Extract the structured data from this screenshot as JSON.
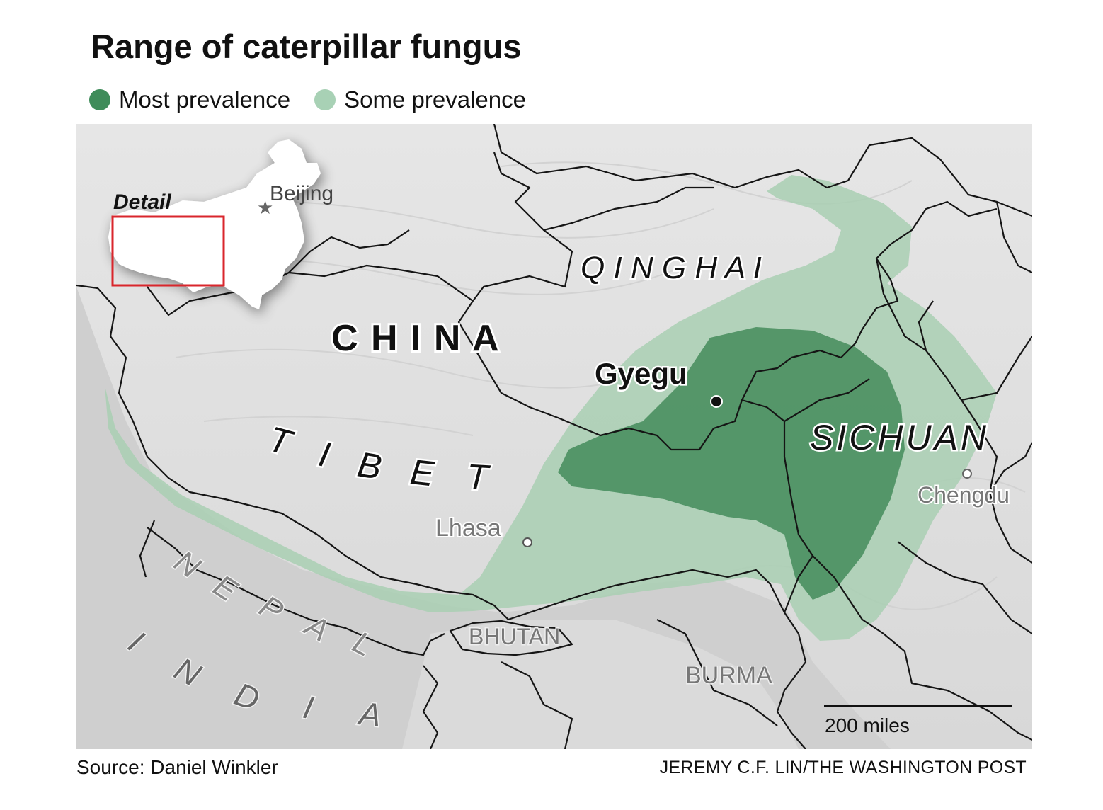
{
  "title": "Range of caterpillar fungus",
  "legend": [
    {
      "label": "Most prevalence",
      "color": "#3f8c5a"
    },
    {
      "label": "Some prevalence",
      "color": "#a8d1b5"
    }
  ],
  "map": {
    "inset_label": "Detail",
    "labels": {
      "beijing": "Beijing",
      "china": "C H I N A",
      "qinghai": "Q I N G H A I",
      "tibet_t": "T",
      "tibet_i": "I",
      "tibet_b": "B",
      "tibet_e": "E",
      "tibet_t2": "T",
      "gyegu": "Gyegu",
      "sichuan": "SICHUAN",
      "lhasa": "Lhasa",
      "chengdu": "Chengdu",
      "nepal_n": "N",
      "nepal_e": "E",
      "nepal_p": "P",
      "nepal_a": "A",
      "nepal_l": "L",
      "india_i": "I",
      "india_n": "N",
      "india_d": "D",
      "india_i2": "I",
      "india_a": "A",
      "bhutan": "BHUTAN",
      "burma": "BURMA"
    },
    "scale_label": "200 miles",
    "colors": {
      "most": "#4a8f60",
      "some": "#a9cfb3",
      "terrain": "#e3e3e3",
      "terrain_dark": "#c9c9c9",
      "border": "#151515",
      "inset_box": "#d9262c"
    }
  },
  "source": "Source: Daniel Winkler",
  "credit": "JEREMY C.F. LIN/THE WASHINGTON POST"
}
